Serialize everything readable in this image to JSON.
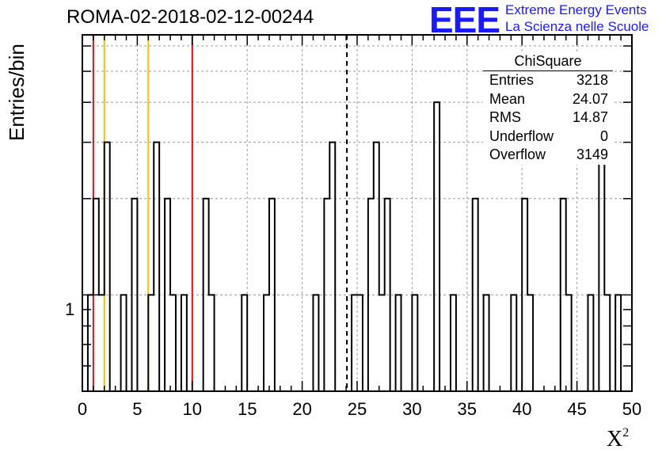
{
  "chart_data": {
    "type": "bar",
    "title": "ROMA-02-2018-02-12-00244",
    "xlabel": "X",
    "xlabel_sup": "2",
    "ylabel": "Entries/bin",
    "y_scale": "log",
    "ylim": [
      0.5,
      6.5
    ],
    "xlim": [
      0,
      50
    ],
    "x_ticks": [
      "0",
      "5",
      "10",
      "15",
      "20",
      "25",
      "30",
      "35",
      "40",
      "45",
      "50"
    ],
    "y_tick_label": "1",
    "bin_width": 0.5,
    "bin_low_edges": [
      0.5,
      1.0,
      1.5,
      2.0,
      2.5,
      3.5,
      4.5,
      5.0,
      6.0,
      6.5,
      7.5,
      8.0,
      8.5,
      9.0,
      9.5,
      11.0,
      11.5,
      13.5,
      14.5,
      16.5,
      17.0,
      17.5,
      21.0,
      22.0,
      22.5,
      23.0,
      24.5,
      25.0,
      26.0,
      26.5,
      27.0,
      27.5,
      28.5,
      29.0,
      30.0,
      32.0,
      32.5,
      33.5,
      35.5,
      36.5,
      37.5,
      39.0,
      40.0,
      40.5,
      43.0,
      43.5,
      44.0,
      44.5,
      46.0,
      47.0,
      47.5,
      48.5,
      49.0,
      49.5
    ],
    "bin_counts": [
      1,
      2,
      1,
      3,
      0,
      1,
      2,
      0,
      1,
      3,
      2,
      1,
      0,
      1,
      0,
      2,
      1,
      0,
      1,
      1,
      2,
      0,
      1,
      2,
      3,
      0,
      1,
      1,
      2,
      3,
      1,
      2,
      1,
      0,
      1,
      4,
      0,
      1,
      2,
      1,
      0,
      1,
      2,
      1,
      0,
      2,
      1,
      0,
      1,
      3,
      1,
      1,
      0,
      0
    ],
    "vertical_lines": [
      {
        "x": 1.0,
        "color": "#dd1111",
        "style": "solid"
      },
      {
        "x": 2.0,
        "color": "#f2c200",
        "style": "solid"
      },
      {
        "x": 6.0,
        "color": "#f2c200",
        "style": "solid"
      },
      {
        "x": 10.0,
        "color": "#dd1111",
        "style": "solid"
      },
      {
        "x": 24.07,
        "color": "#000000",
        "style": "dashed"
      }
    ],
    "grid": true
  },
  "logo": {
    "text": "EEE",
    "line1": "Extreme Energy Events",
    "line2": "La Scienza nelle Scuole"
  },
  "stats": {
    "name": "ChiSquare",
    "rows": [
      {
        "label": "Entries",
        "value": "3218"
      },
      {
        "label": "Mean",
        "value": "24.07"
      },
      {
        "label": "RMS",
        "value": "14.87"
      },
      {
        "label": "Underflow",
        "value": "0"
      },
      {
        "label": "Overflow",
        "value": "3149"
      }
    ]
  }
}
